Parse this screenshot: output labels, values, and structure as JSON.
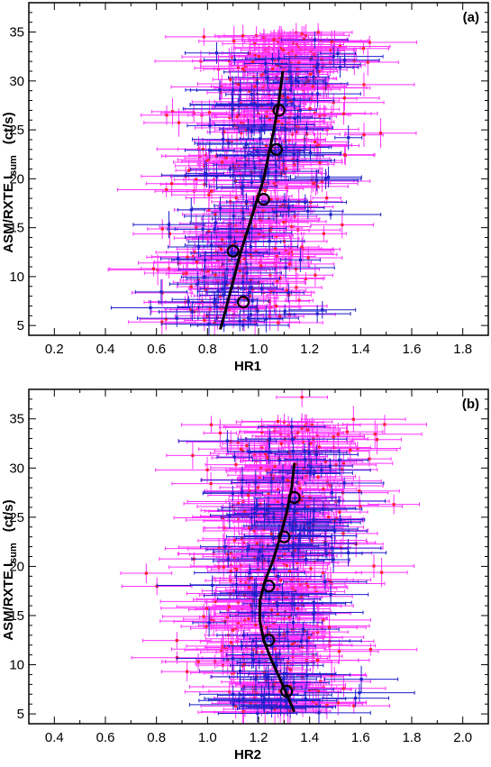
{
  "chart_data": [
    {
      "type": "scatter",
      "panel_label": "(a)",
      "xlabel": "HR1",
      "ylabel": "ASM/RXTE I",
      "ylabel_sub": "sum",
      "ylabel_unit": "(ct/s)",
      "xlim": [
        0.1,
        1.9
      ],
      "ylim": [
        4,
        38
      ],
      "xticks": [
        "0.2",
        "0.4",
        "0.6",
        "0.8",
        "1.0",
        "1.2",
        "1.4",
        "1.6",
        "1.8"
      ],
      "yticks": [
        "5",
        "10",
        "15",
        "20",
        "25",
        "30",
        "35"
      ],
      "colors": {
        "red_points": "#ff2030",
        "red_errorbars": "#ff33ff",
        "blue": "#1f1fcc",
        "curve": "#000000"
      },
      "cloud": {
        "center_curve": [
          [
            0.86,
            5
          ],
          [
            0.92,
            10
          ],
          [
            0.97,
            15
          ],
          [
            1.02,
            20
          ],
          [
            1.06,
            25
          ],
          [
            1.09,
            31
          ],
          [
            1.1,
            35
          ]
        ],
        "x_spread": 0.14,
        "xerr_range": [
          0.05,
          0.2
        ],
        "yerr_range": [
          0.6,
          1.6
        ],
        "n_red": 520,
        "n_blue": 150
      },
      "fit_curve": [
        [
          0.85,
          4.6
        ],
        [
          0.87,
          6.5
        ],
        [
          0.89,
          8.5
        ],
        [
          0.91,
          10.5
        ],
        [
          0.93,
          12.5
        ],
        [
          0.96,
          15
        ],
        [
          0.99,
          17.5
        ],
        [
          1.02,
          20
        ],
        [
          1.04,
          22.5
        ],
        [
          1.06,
          25
        ],
        [
          1.08,
          28
        ],
        [
          1.095,
          31
        ]
      ],
      "circles": [
        [
          0.94,
          7.4
        ],
        [
          0.9,
          12.6
        ],
        [
          1.02,
          17.9
        ],
        [
          1.07,
          23
        ],
        [
          1.08,
          27
        ]
      ],
      "outliers_blue": [
        [
          1.22,
          34.2
        ],
        [
          1.08,
          32.3
        ],
        [
          1.25,
          6.6
        ],
        [
          1.23,
          6.2
        ],
        [
          0.74,
          6.4
        ],
        [
          0.79,
          11.7
        ]
      ],
      "outliers_red": [
        [
          0.66,
          19.5
        ],
        [
          0.64,
          26.5
        ],
        [
          1.06,
          34.2
        ]
      ]
    },
    {
      "type": "scatter",
      "panel_label": "(b)",
      "xlabel": "HR2",
      "ylabel": "ASM/RXTE I",
      "ylabel_sub": "sum",
      "ylabel_unit": "(ct/s)",
      "xlim": [
        0.3,
        2.1
      ],
      "ylim": [
        4,
        38
      ],
      "xticks": [
        "0.4",
        "0.6",
        "0.8",
        "1.0",
        "1.2",
        "1.4",
        "1.6",
        "1.8",
        "2.0"
      ],
      "yticks": [
        "5",
        "10",
        "15",
        "20",
        "25",
        "30",
        "35"
      ],
      "colors": {
        "red_points": "#ff2030",
        "red_errorbars": "#ff33ff",
        "blue": "#1f1fcc",
        "curve": "#000000"
      },
      "cloud": {
        "center_curve": [
          [
            1.3,
            5
          ],
          [
            1.25,
            10
          ],
          [
            1.24,
            15
          ],
          [
            1.27,
            20
          ],
          [
            1.31,
            25
          ],
          [
            1.33,
            31
          ],
          [
            1.33,
            35
          ]
        ],
        "x_spread": 0.13,
        "xerr_range": [
          0.06,
          0.22
        ],
        "yerr_range": [
          0.6,
          1.6
        ],
        "n_red": 520,
        "n_blue": 150
      },
      "fit_curve": [
        [
          1.34,
          5.2
        ],
        [
          1.31,
          7
        ],
        [
          1.28,
          8.8
        ],
        [
          1.25,
          10.5
        ],
        [
          1.22,
          12.5
        ],
        [
          1.205,
          14.5
        ],
        [
          1.205,
          16.5
        ],
        [
          1.225,
          18.5
        ],
        [
          1.255,
          20.5
        ],
        [
          1.285,
          23
        ],
        [
          1.31,
          25.5
        ],
        [
          1.33,
          28
        ],
        [
          1.34,
          30.5
        ]
      ],
      "circles": [
        [
          1.31,
          7.3
        ],
        [
          1.24,
          12.5
        ],
        [
          1.24,
          18
        ],
        [
          1.3,
          23
        ],
        [
          1.34,
          27
        ]
      ],
      "outliers_blue": [
        [
          1.33,
          34.2
        ],
        [
          1.58,
          6.6
        ],
        [
          1.22,
          6.2
        ],
        [
          1.1,
          7
        ]
      ],
      "outliers_red": [
        [
          0.76,
          19.3
        ],
        [
          1.73,
          26.3
        ],
        [
          1.37,
          37.2
        ],
        [
          0.92,
          9.3
        ]
      ]
    }
  ]
}
